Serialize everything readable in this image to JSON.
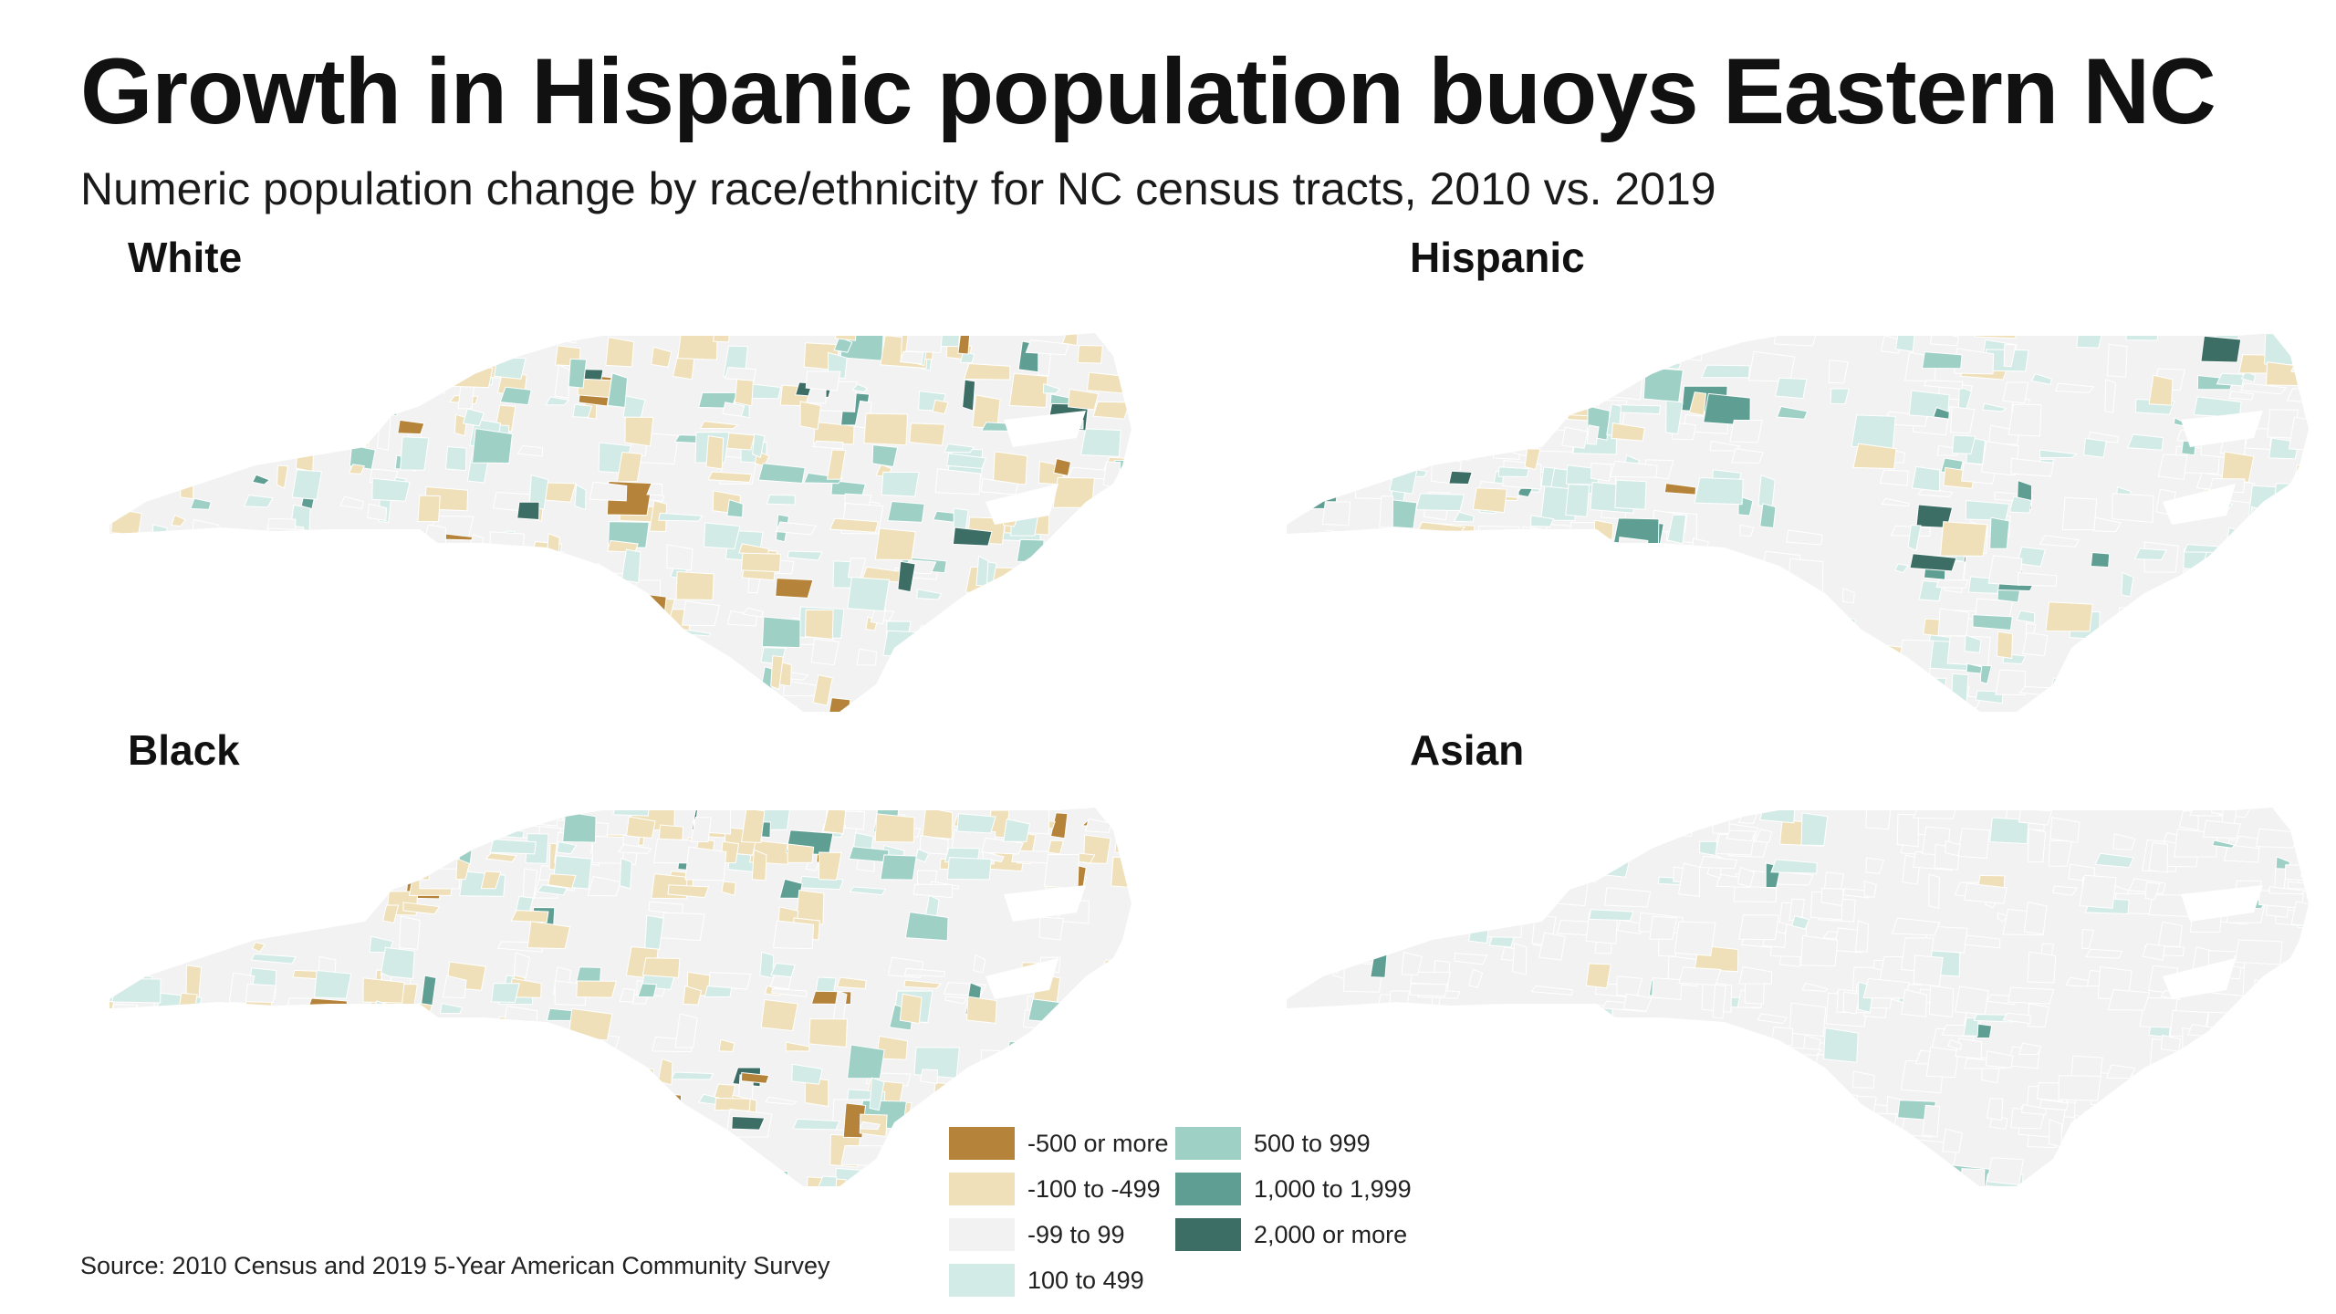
{
  "title": "Growth in Hispanic population buoys Eastern NC",
  "subtitle": "Numeric population change by race/ethnicity for NC census tracts, 2010 vs. 2019",
  "panels": {
    "white": "White",
    "hispanic": "Hispanic",
    "black": "Black",
    "asian": "Asian"
  },
  "legend": [
    {
      "label": "-500 or more",
      "color": "#b5843a"
    },
    {
      "label": "-100 to -499",
      "color": "#efe0b9"
    },
    {
      "label": "-99 to 99",
      "color": "#f2f2f2"
    },
    {
      "label": "100 to 499",
      "color": "#d3ebe6"
    },
    {
      "label": "500 to 999",
      "color": "#9fd0c6"
    },
    {
      "label": "1,000 to 1,999",
      "color": "#5f9e92"
    },
    {
      "label": "2,000 or more",
      "color": "#3c6e66"
    }
  ],
  "source": "Source: 2010 Census and 2019 5-Year American Community Survey"
}
